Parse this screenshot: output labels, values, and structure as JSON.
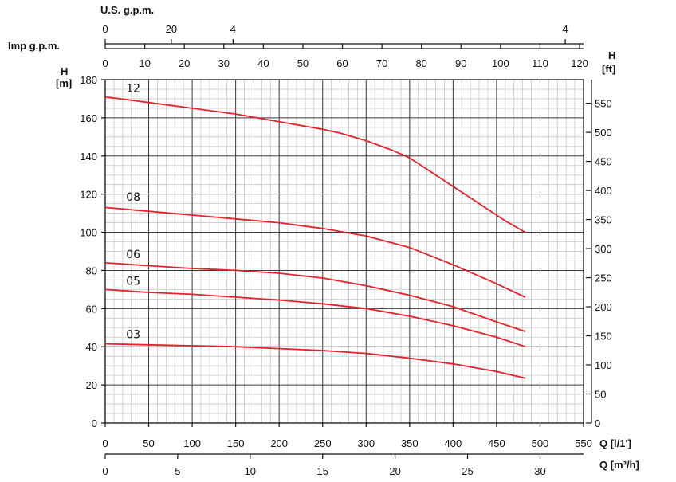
{
  "chart_data": {
    "type": "line",
    "axes": {
      "left": {
        "title_top": "H",
        "title_bottom": "[m]",
        "range": [
          0,
          180
        ],
        "ticks": [
          0,
          20,
          40,
          60,
          80,
          100,
          120,
          140,
          160,
          180
        ]
      },
      "right": {
        "title_top": "H",
        "title_bottom": "[ft]",
        "range": [
          0,
          590.55
        ],
        "ticks": [
          0,
          50,
          100,
          150,
          200,
          250,
          300,
          350,
          400,
          450,
          500,
          550
        ]
      },
      "bottom_lpm": {
        "title": "Q [l/1']",
        "range": [
          0,
          550
        ],
        "ticks": [
          0,
          50,
          100,
          150,
          200,
          250,
          300,
          350,
          400,
          450,
          500,
          550
        ]
      },
      "bottom_m3h": {
        "title": "Q [m³/h]",
        "range": [
          0,
          33
        ],
        "ticks": [
          0,
          5,
          10,
          15,
          20,
          25,
          30
        ]
      },
      "top_imp": {
        "title": "Imp g.p.m.",
        "range": [
          0,
          121
        ],
        "ticks": [
          0,
          10,
          20,
          30,
          40,
          50,
          60,
          70,
          80,
          90,
          100,
          110,
          120
        ]
      },
      "top_us": {
        "title": "U.S. g.p.m.",
        "tick_labels": [
          {
            "label": "0",
            "q_lpm": 0
          },
          {
            "label": "20",
            "q_lpm": 76
          },
          {
            "label": "4",
            "q_lpm": 147
          },
          {
            "label": "4",
            "q_lpm": 529
          }
        ]
      }
    },
    "grid": true,
    "grid_minor_x": 10,
    "grid_minor_y": 5,
    "series": [
      {
        "name": "12",
        "color": "#e8202a",
        "label_at": [
          25,
          171
        ],
        "x": [
          0,
          50,
          100,
          150,
          200,
          250,
          270,
          300,
          330,
          350,
          370,
          400,
          430,
          460,
          483
        ],
        "y": [
          171,
          168,
          165,
          162,
          158,
          154,
          152,
          148,
          143,
          139,
          133,
          124,
          115,
          106,
          100
        ]
      },
      {
        "name": "08",
        "color": "#e8202a",
        "label_at": [
          25,
          114
        ],
        "x": [
          0,
          50,
          100,
          150,
          200,
          250,
          300,
          350,
          400,
          450,
          483
        ],
        "y": [
          113,
          111,
          109,
          107,
          105,
          102,
          98,
          92,
          83,
          73,
          66
        ]
      },
      {
        "name": "06",
        "color": "#e8202a",
        "label_at": [
          25,
          84
        ],
        "x": [
          0,
          50,
          100,
          150,
          200,
          250,
          300,
          350,
          400,
          450,
          483
        ],
        "y": [
          84,
          82.5,
          81,
          80,
          78.5,
          76,
          72,
          67,
          61,
          53,
          48
        ]
      },
      {
        "name": "05",
        "color": "#e8202a",
        "label_at": [
          25,
          70
        ],
        "x": [
          0,
          50,
          100,
          150,
          200,
          250,
          300,
          350,
          400,
          450,
          483
        ],
        "y": [
          70,
          68.5,
          67.5,
          66,
          64.5,
          62.5,
          60,
          56,
          51,
          45,
          40
        ]
      },
      {
        "name": "03",
        "color": "#e8202a",
        "label_at": [
          25,
          42
        ],
        "x": [
          0,
          50,
          100,
          150,
          200,
          250,
          300,
          350,
          400,
          450,
          483
        ],
        "y": [
          41.5,
          41,
          40.5,
          40,
          39,
          38,
          36.5,
          34,
          31,
          27,
          23.5
        ]
      }
    ]
  }
}
